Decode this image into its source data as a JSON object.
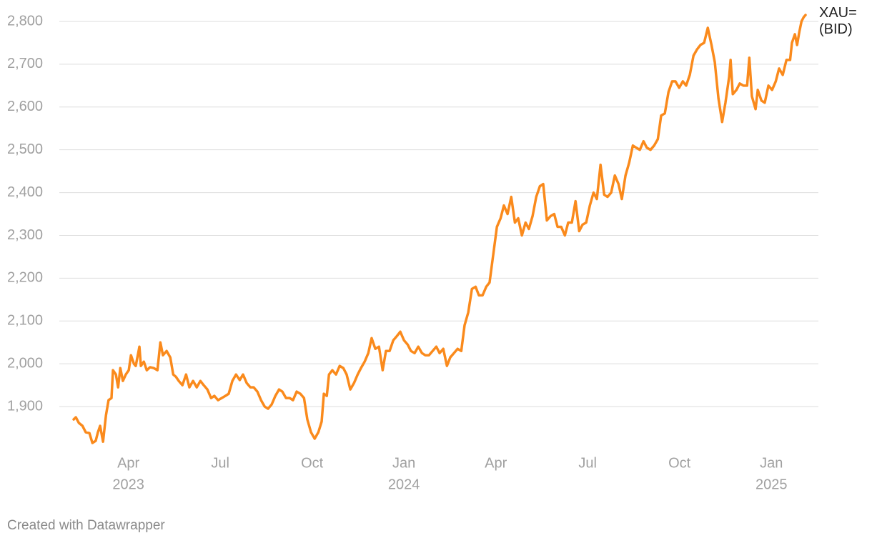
{
  "chart_data": {
    "type": "line",
    "series": [
      {
        "name": "XAU= (BID)",
        "color": "#fa8a1c",
        "x": [
          2023.101,
          2023.107,
          2023.115,
          2023.125,
          2023.134,
          2023.144,
          2023.152,
          2023.161,
          2023.167,
          2023.173,
          2023.181,
          2023.189,
          2023.196,
          2023.204,
          2023.208,
          2023.216,
          2023.222,
          2023.228,
          2023.235,
          2023.243,
          2023.251,
          2023.257,
          2023.265,
          2023.27,
          2023.28,
          2023.284,
          2023.292,
          2023.3,
          2023.309,
          2023.319,
          2023.329,
          2023.337,
          2023.344,
          2023.354,
          2023.364,
          2023.372,
          2023.379,
          2023.387,
          2023.397,
          2023.407,
          2023.416,
          2023.426,
          2023.436,
          2023.446,
          2023.455,
          2023.465,
          2023.475,
          2023.484,
          2023.494,
          2023.504,
          2023.514,
          2023.523,
          2023.533,
          2023.543,
          2023.553,
          2023.562,
          2023.572,
          2023.582,
          2023.591,
          2023.601,
          2023.611,
          2023.621,
          2023.63,
          2023.64,
          2023.65,
          2023.66,
          2023.669,
          2023.679,
          2023.689,
          2023.698,
          2023.708,
          2023.718,
          2023.728,
          2023.737,
          2023.747,
          2023.757,
          2023.767,
          2023.776,
          2023.782,
          2023.79,
          2023.796,
          2023.805,
          2023.815,
          2023.825,
          2023.835,
          2023.844,
          2023.854,
          2023.864,
          2023.874,
          2023.883,
          2023.893,
          2023.903,
          2023.912,
          2023.922,
          2023.932,
          2023.942,
          2023.951,
          2023.961,
          2023.971,
          2023.981,
          2023.99,
          2024.0,
          2024.01,
          2024.019,
          2024.029,
          2024.039,
          2024.049,
          2024.058,
          2024.068,
          2024.078,
          2024.088,
          2024.097,
          2024.107,
          2024.117,
          2024.126,
          2024.136,
          2024.146,
          2024.156,
          2024.165,
          2024.175,
          2024.185,
          2024.195,
          2024.204,
          2024.214,
          2024.224,
          2024.233,
          2024.243,
          2024.253,
          2024.263,
          2024.272,
          2024.282,
          2024.292,
          2024.302,
          2024.311,
          2024.321,
          2024.331,
          2024.34,
          2024.35,
          2024.36,
          2024.37,
          2024.379,
          2024.389,
          2024.399,
          2024.409,
          2024.418,
          2024.428,
          2024.438,
          2024.447,
          2024.457,
          2024.467,
          2024.477,
          2024.486,
          2024.496,
          2024.506,
          2024.516,
          2024.525,
          2024.535,
          2024.545,
          2024.554,
          2024.564,
          2024.574,
          2024.584,
          2024.593,
          2024.603,
          2024.613,
          2024.623,
          2024.632,
          2024.642,
          2024.652,
          2024.661,
          2024.671,
          2024.681,
          2024.691,
          2024.7,
          2024.71,
          2024.72,
          2024.73,
          2024.739,
          2024.749,
          2024.759,
          2024.768,
          2024.778,
          2024.788,
          2024.798,
          2024.807,
          2024.817,
          2024.827,
          2024.837,
          2024.846,
          2024.856,
          2024.866,
          2024.875,
          2024.885,
          2024.889,
          2024.895,
          2024.905,
          2024.914,
          2024.924,
          2024.934,
          2024.94,
          2024.947,
          2024.957,
          2024.963,
          2024.973,
          2024.982,
          2024.992,
          2025.002,
          2025.012,
          2025.021,
          2025.031,
          2025.041,
          2025.051,
          2025.056,
          2025.064,
          2025.07,
          2025.076,
          2025.082,
          2025.088,
          2025.093
        ],
        "values": [
          1870,
          1875,
          1862,
          1855,
          1840,
          1838,
          1815,
          1820,
          1840,
          1855,
          1818,
          1880,
          1915,
          1920,
          1985,
          1975,
          1945,
          1990,
          1960,
          1975,
          1985,
          2020,
          2000,
          1995,
          2040,
          1995,
          2005,
          1985,
          1992,
          1990,
          1985,
          2050,
          2020,
          2030,
          2015,
          1975,
          1970,
          1960,
          1950,
          1975,
          1945,
          1960,
          1945,
          1960,
          1950,
          1940,
          1920,
          1925,
          1915,
          1920,
          1925,
          1930,
          1960,
          1975,
          1962,
          1975,
          1955,
          1945,
          1945,
          1935,
          1915,
          1900,
          1895,
          1905,
          1925,
          1940,
          1935,
          1920,
          1920,
          1915,
          1935,
          1930,
          1920,
          1870,
          1840,
          1825,
          1840,
          1865,
          1930,
          1925,
          1975,
          1985,
          1975,
          1995,
          1990,
          1975,
          1940,
          1955,
          1975,
          1990,
          2005,
          2025,
          2060,
          2035,
          2040,
          1985,
          2030,
          2030,
          2055,
          2065,
          2075,
          2055,
          2045,
          2030,
          2025,
          2040,
          2025,
          2020,
          2020,
          2030,
          2040,
          2025,
          2035,
          1995,
          2015,
          2025,
          2035,
          2030,
          2090,
          2120,
          2175,
          2180,
          2160,
          2160,
          2180,
          2190,
          2255,
          2320,
          2340,
          2370,
          2350,
          2390,
          2330,
          2340,
          2300,
          2330,
          2315,
          2345,
          2390,
          2415,
          2420,
          2335,
          2345,
          2350,
          2320,
          2320,
          2300,
          2330,
          2330,
          2380,
          2310,
          2325,
          2330,
          2370,
          2400,
          2385,
          2465,
          2395,
          2390,
          2400,
          2440,
          2420,
          2385,
          2440,
          2470,
          2510,
          2505,
          2500,
          2520,
          2505,
          2500,
          2510,
          2525,
          2580,
          2585,
          2635,
          2660,
          2660,
          2645,
          2660,
          2650,
          2675,
          2720,
          2735,
          2745,
          2750,
          2785,
          2745,
          2705,
          2620,
          2565,
          2610,
          2670,
          2710,
          2630,
          2640,
          2655,
          2650,
          2650,
          2715,
          2625,
          2595,
          2640,
          2615,
          2610,
          2650,
          2640,
          2660,
          2690,
          2675,
          2710,
          2710,
          2750,
          2770,
          2745,
          2775,
          2800,
          2810,
          2815
        ]
      }
    ],
    "xlim": [
      2023.062,
      2025.128
    ],
    "xticks": [
      {
        "value": 2023.25,
        "label": "Apr"
      },
      {
        "value": 2023.5,
        "label": "Jul"
      },
      {
        "value": 2023.75,
        "label": "Oct"
      },
      {
        "value": 2024,
        "label": "Jan"
      },
      {
        "value": 2024.25,
        "label": "Apr"
      },
      {
        "value": 2024.5,
        "label": "Jul"
      },
      {
        "value": 2024.75,
        "label": "Oct"
      },
      {
        "value": 2025,
        "label": "Jan"
      }
    ],
    "xtick_years": [
      {
        "value": 2023.25,
        "label": "2023"
      },
      {
        "value": 2024,
        "label": "2024"
      },
      {
        "value": 2025,
        "label": "2025"
      }
    ],
    "ylim": [
      1810,
      2825
    ],
    "yticks": [
      {
        "value": 1900,
        "label": "1,900"
      },
      {
        "value": 2000,
        "label": "2,000"
      },
      {
        "value": 2100,
        "label": "2,100"
      },
      {
        "value": 2200,
        "label": "2,200"
      },
      {
        "value": 2300,
        "label": "2,300"
      },
      {
        "value": 2400,
        "label": "2,400"
      },
      {
        "value": 2500,
        "label": "2,500"
      },
      {
        "value": 2600,
        "label": "2,600"
      },
      {
        "value": 2700,
        "label": "2,700"
      },
      {
        "value": 2800,
        "label": "2,800"
      }
    ],
    "grid": true,
    "credit": "Created with Datawrapper"
  }
}
